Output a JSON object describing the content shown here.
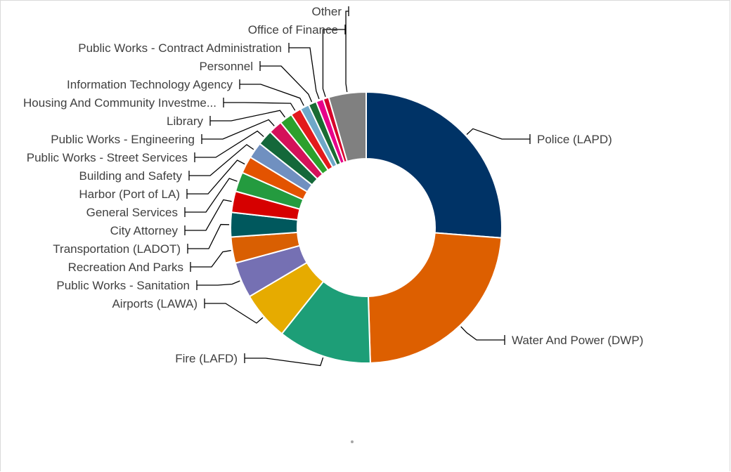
{
  "chart_data": {
    "type": "pie",
    "subtype": "donut",
    "unit": "share of total (%) — estimated from slice angles",
    "legend": "none (category labels attached to slices with leader lines)",
    "slices": [
      {
        "label": "Police (LAPD)",
        "value": 27.0,
        "color": "#003366"
      },
      {
        "label": "Water And Power (DWP)",
        "value": 24.0,
        "color": "#dd5f00"
      },
      {
        "label": "Fire (LAFD)",
        "value": 11.5,
        "color": "#1d9e77"
      },
      {
        "label": "Airports (LAWA)",
        "value": 6.0,
        "color": "#e6ab00"
      },
      {
        "label": "Public Works - Sanitation",
        "value": 4.4,
        "color": "#7570b3"
      },
      {
        "label": "Recreation And Parks",
        "value": 3.2,
        "color": "#d95f02"
      },
      {
        "label": "Transportation (LADOT)",
        "value": 3.0,
        "color": "#00585d"
      },
      {
        "label": "City Attorney",
        "value": 2.6,
        "color": "#d60000"
      },
      {
        "label": "General Services",
        "value": 2.4,
        "color": "#249b3f"
      },
      {
        "label": "Harbor (Port of LA)",
        "value": 2.1,
        "color": "#e35300"
      },
      {
        "label": "Building and Safety",
        "value": 2.0,
        "color": "#7090c0"
      },
      {
        "label": "Public Works - Street Services",
        "value": 1.9,
        "color": "#14683a"
      },
      {
        "label": "Public Works - Engineering",
        "value": 1.7,
        "color": "#d41159"
      },
      {
        "label": "Library",
        "value": 1.6,
        "color": "#2ca02c"
      },
      {
        "label": "Housing And Community Investme...",
        "value": 1.3,
        "color": "#e31a1c"
      },
      {
        "label": "Information Technology Agency",
        "value": 1.1,
        "color": "#6fa8c8"
      },
      {
        "label": "Personnel",
        "value": 1.0,
        "color": "#1a6b33"
      },
      {
        "label": "Public Works - Contract Administration",
        "value": 0.9,
        "color": "#e7008a"
      },
      {
        "label": "Office of Finance",
        "value": 0.7,
        "color": "#d6002b"
      },
      {
        "label": "Other",
        "value": 4.6,
        "color": "#808080"
      }
    ]
  }
}
